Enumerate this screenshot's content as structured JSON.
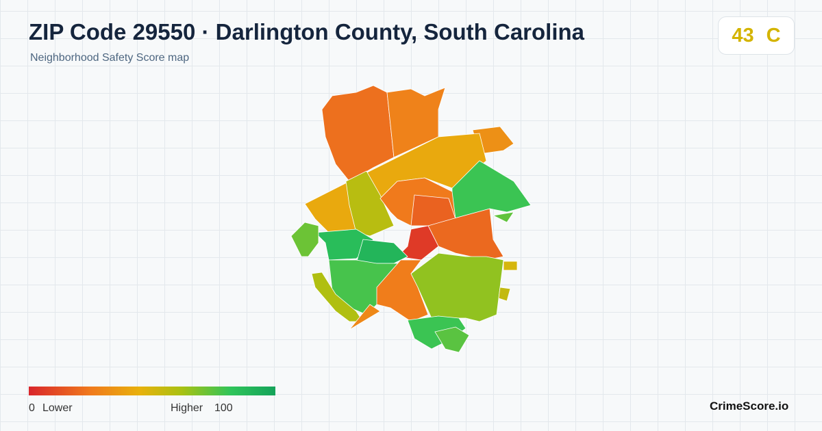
{
  "header": {
    "title": "ZIP Code 29550 · Darlington County, South Carolina",
    "subtitle": "Neighborhood Safety Score map"
  },
  "score": {
    "value": 43,
    "grade": "C"
  },
  "legend": {
    "min": 0,
    "min_label": "Lower",
    "max_label": "Higher",
    "max": 100
  },
  "regions": [
    {
      "score": 22
    },
    {
      "score": 28
    },
    {
      "score": 33
    },
    {
      "score": 42
    },
    {
      "score": 58
    },
    {
      "score": 80
    },
    {
      "score": 25
    },
    {
      "score": 18
    },
    {
      "score": 20
    },
    {
      "score": 6
    },
    {
      "score": 86
    },
    {
      "score": 90
    },
    {
      "score": 78
    },
    {
      "score": 26
    },
    {
      "score": 66
    },
    {
      "score": 80
    },
    {
      "score": 75
    },
    {
      "score": 72
    },
    {
      "score": 60
    },
    {
      "score": 74
    },
    {
      "score": 50
    },
    {
      "score": 55
    },
    {
      "score": 30
    }
  ],
  "brand": "CrimeScore.io"
}
